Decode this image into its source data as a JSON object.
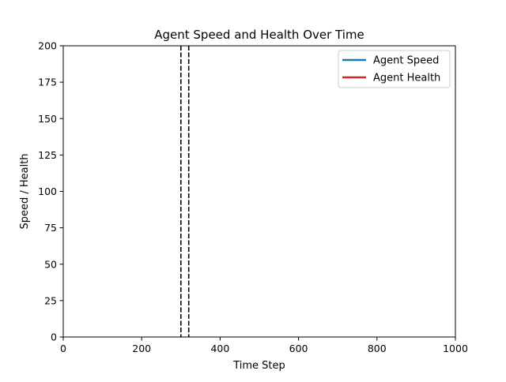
{
  "chart_data": {
    "type": "line",
    "title": "Agent Speed and Health Over Time",
    "xlabel": "Time Step",
    "ylabel": "Speed / Health",
    "xlim": [
      0,
      1000
    ],
    "ylim": [
      0,
      200
    ],
    "xticks": [
      0,
      200,
      400,
      600,
      800,
      1000
    ],
    "yticks": [
      0,
      25,
      50,
      75,
      100,
      125,
      150,
      175,
      200
    ],
    "grid": false,
    "legend_position": "upper-right",
    "series": [
      {
        "name": "Agent Speed",
        "color": "#1f77b4",
        "x": [],
        "y": []
      },
      {
        "name": "Agent Health",
        "color": "#d62728",
        "x": [],
        "y": []
      }
    ],
    "vertical_lines": [
      {
        "x": 300,
        "style": "dashed",
        "color": "#000000"
      },
      {
        "x": 320,
        "style": "dashed",
        "color": "#000000"
      }
    ]
  }
}
